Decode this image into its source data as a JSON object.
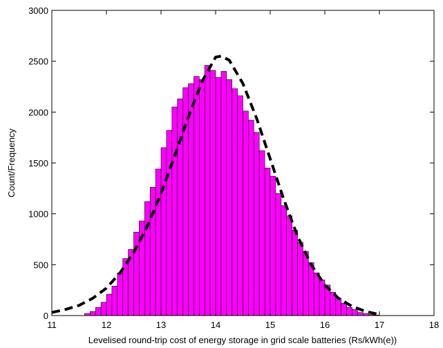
{
  "chart_data": {
    "type": "histogram",
    "xlabel": "Levelised round-trip cost of energy storage in grid scale batteries (Rs/kWh(e))",
    "ylabel": "Count/Frequency",
    "bins": [
      11.6,
      11.7,
      11.8,
      11.9,
      12.0,
      12.1,
      12.2,
      12.3,
      12.4,
      12.5,
      12.6,
      12.7,
      12.8,
      12.9,
      13.0,
      13.1,
      13.2,
      13.3,
      13.4,
      13.5,
      13.6,
      13.7,
      13.8,
      13.9,
      14.0,
      14.1,
      14.2,
      14.3,
      14.4,
      14.5,
      14.6,
      14.7,
      14.8,
      14.9,
      15.0,
      15.1,
      15.2,
      15.3,
      15.4,
      15.5,
      15.6,
      15.7,
      15.8,
      15.9,
      16.0,
      16.1,
      16.2,
      16.3,
      16.4,
      16.5,
      16.6,
      16.7,
      16.8,
      16.9,
      17.0
    ],
    "values": [
      20,
      40,
      80,
      130,
      210,
      290,
      420,
      560,
      650,
      820,
      930,
      1120,
      1260,
      1440,
      1650,
      1820,
      2050,
      2130,
      2240,
      2280,
      2350,
      2320,
      2460,
      2410,
      2340,
      2400,
      2320,
      2230,
      2160,
      2010,
      1920,
      1800,
      1620,
      1450,
      1370,
      1200,
      1080,
      980,
      840,
      720,
      630,
      520,
      420,
      350,
      300,
      230,
      170,
      120,
      80,
      60,
      30,
      20,
      10,
      5
    ],
    "color": "#ff00ff",
    "fit": {
      "x": [
        11,
        11.25,
        11.5,
        11.75,
        12,
        12.25,
        12.5,
        12.75,
        13,
        13.25,
        13.5,
        13.75,
        14,
        14.1,
        14.25,
        14.5,
        14.75,
        15,
        15.25,
        15.5,
        15.75,
        16,
        16.25,
        16.5,
        16.75,
        17
      ],
      "values": [
        30,
        60,
        100,
        170,
        270,
        420,
        620,
        880,
        1200,
        1570,
        1950,
        2300,
        2540,
        2550,
        2510,
        2280,
        1940,
        1540,
        1140,
        780,
        500,
        300,
        170,
        90,
        40,
        10
      ],
      "color": "#000000",
      "style": "dashed"
    },
    "xlim": [
      11,
      18
    ],
    "xticks": [
      11,
      12,
      13,
      14,
      15,
      16,
      17,
      18
    ],
    "ylim": [
      0,
      3000
    ],
    "yticks": [
      0,
      500,
      1000,
      1500,
      2000,
      2500,
      3000
    ],
    "grid": false
  }
}
